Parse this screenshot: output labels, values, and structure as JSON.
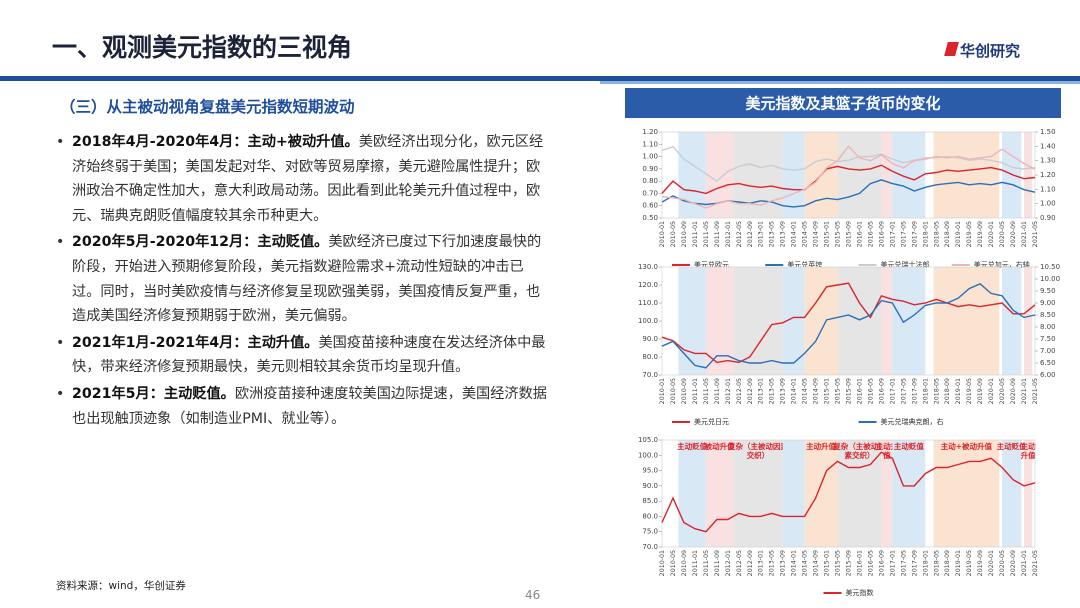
{
  "header": {
    "title": "一、观测美元指数的三视角",
    "brand": "华创研究"
  },
  "subtitle": "（三）从主被动视角复盘美元指数短期波动",
  "bullets": [
    {
      "lead": "2018年4月-2020年4月：主动+被动升值。",
      "text": "美欧经济出现分化，欧元区经济始终弱于美国；美国发起对华、对欧等贸易摩擦，美元避险属性提升；欧洲政治不确定性加大，意大利政局动荡。因此看到此轮美元升值过程中，欧元、瑞典克朗贬值幅度较其余币种更大。"
    },
    {
      "lead": "2020年5月-2020年12月：主动贬值。",
      "text": "美欧经济已度过下行加速度最快的阶段，开始进入预期修复阶段，美元指数避险需求+流动性短缺的冲击已过。同时，当时美欧疫情与经济修复呈现欧强美弱，美国疫情反复严重，也造成美国经济修复预期弱于欧洲，美元偏弱。"
    },
    {
      "lead": "2021年1月-2021年4月：主动升值。",
      "text": "美国疫苗接种速度在发达经济体中最快，带来经济修复预期最快，美元则相较其余货币均呈现升值。"
    },
    {
      "lead": "2021年5月：主动贬值。",
      "text": "欧洲疫苗接种速度较美国边际提速，美国经济数据也出现触顶迹象（如制造业PMI、就业等）。"
    }
  ],
  "source": "资料来源：wind，华创证券",
  "page": "46",
  "panel_title": "美元指数及其篮子货币的变化",
  "periods": [
    {
      "start": "2010-07",
      "end": "2011-05",
      "color": "#d9e8f5",
      "label": "主动贬值"
    },
    {
      "start": "2011-05",
      "end": "2012-03",
      "color": "#f8e1e0",
      "label": "被动升值"
    },
    {
      "start": "2012-03",
      "end": "2013-09",
      "color": "#e5e5e5",
      "label": "复杂（主被动因素交织）"
    },
    {
      "start": "2013-09",
      "end": "2014-05",
      "color": "#d9e8f5"
    },
    {
      "start": "2014-05",
      "end": "2015-05",
      "color": "#fbe3d1",
      "label": "主动升值"
    },
    {
      "start": "2015-05",
      "end": "2016-09",
      "color": "#e5e5e5",
      "label": "复杂（主被动因素交织）"
    },
    {
      "start": "2016-09",
      "end": "2017-01",
      "color": "#f8e1e0",
      "label": "主动升值"
    },
    {
      "start": "2017-01",
      "end": "2018-01",
      "color": "#d9e8f5",
      "label": "主动贬值"
    },
    {
      "start": "2018-04",
      "end": "2020-04",
      "color": "#fbe3d1",
      "label": "主动+被动升值"
    },
    {
      "start": "2020-05",
      "end": "2020-12",
      "color": "#d9e8f5",
      "label": "主动贬值"
    },
    {
      "start": "2021-01",
      "end": "2021-04",
      "color": "#f8e1e0",
      "label": "主动升值"
    }
  ],
  "charts": [
    {
      "type": "line",
      "x": [
        "2010-01",
        "2010-05",
        "2010-09",
        "2011-01",
        "2011-05",
        "2011-09",
        "2012-01",
        "2012-05",
        "2012-09",
        "2013-01",
        "2013-05",
        "2013-09",
        "2014-01",
        "2014-05",
        "2014-09",
        "2015-01",
        "2015-05",
        "2015-09",
        "2016-01",
        "2016-05",
        "2016-09",
        "2017-01",
        "2017-05",
        "2017-09",
        "2018-01",
        "2018-05",
        "2018-09",
        "2019-01",
        "2019-05",
        "2019-09",
        "2020-01",
        "2020-05",
        "2020-09",
        "2021-01",
        "2021-05"
      ],
      "ylim": [
        0.5,
        1.2
      ],
      "yticks": [
        {
          "value": 0.5,
          "label": "0.50"
        },
        {
          "value": 0.6,
          "label": "0.60"
        },
        {
          "value": 0.7,
          "label": "0.70"
        },
        {
          "value": 0.8,
          "label": "0.80"
        },
        {
          "value": 0.9,
          "label": "0.90"
        },
        {
          "value": 1.0,
          "label": "1.00"
        },
        {
          "value": 1.1,
          "label": "1.10"
        },
        {
          "value": 1.2,
          "label": "1.20"
        }
      ],
      "y2lim": [
        0.9,
        1.5
      ],
      "y2ticks": [
        {
          "value": 0.9,
          "label": "0.90"
        },
        {
          "value": 1.0,
          "label": "1.00"
        },
        {
          "value": 1.1,
          "label": "1.10"
        },
        {
          "value": 1.2,
          "label": "1.20"
        },
        {
          "value": 1.3,
          "label": "1.30"
        },
        {
          "value": 1.4,
          "label": "1.40"
        },
        {
          "value": 1.5,
          "label": "1.50"
        }
      ],
      "series": [
        {
          "name": "美元兑欧元",
          "color": "#d9252b",
          "values": [
            0.7,
            0.8,
            0.73,
            0.72,
            0.7,
            0.74,
            0.77,
            0.78,
            0.76,
            0.75,
            0.76,
            0.74,
            0.73,
            0.73,
            0.8,
            0.9,
            0.92,
            0.9,
            0.89,
            0.9,
            0.93,
            0.88,
            0.84,
            0.81,
            0.86,
            0.87,
            0.89,
            0.88,
            0.89,
            0.9,
            0.91,
            0.89,
            0.85,
            0.82,
            0.83
          ]
        },
        {
          "name": "美元兑英镑",
          "color": "#2c6fb7",
          "values": [
            0.63,
            0.68,
            0.64,
            0.62,
            0.61,
            0.62,
            0.64,
            0.63,
            0.62,
            0.64,
            0.63,
            0.6,
            0.59,
            0.6,
            0.64,
            0.66,
            0.65,
            0.67,
            0.7,
            0.78,
            0.81,
            0.78,
            0.76,
            0.72,
            0.75,
            0.77,
            0.78,
            0.79,
            0.77,
            0.78,
            0.77,
            0.79,
            0.77,
            0.73,
            0.71
          ]
        },
        {
          "name": "美元兑瑞士法郎",
          "color": "#c8ccd3",
          "values": [
            1.05,
            1.08,
            0.98,
            0.92,
            0.86,
            0.8,
            0.88,
            0.92,
            0.94,
            0.91,
            0.93,
            0.9,
            0.89,
            0.9,
            0.96,
            0.98,
            0.96,
            0.97,
            1.0,
            1.0,
            1.02,
            0.98,
            0.95,
            0.97,
            0.99,
            0.99,
            1.0,
            0.99,
            0.97,
            0.98,
            0.97,
            0.95,
            0.91,
            0.9,
            0.91
          ]
        },
        {
          "name": "美元兑加元，右轴",
          "color": "#f0b4b6",
          "axis": "y2",
          "values": [
            1.05,
            1.04,
            1.03,
            1.0,
            0.97,
            1.0,
            1.02,
            1.0,
            1.0,
            0.99,
            1.02,
            1.04,
            1.07,
            1.1,
            1.15,
            1.25,
            1.3,
            1.4,
            1.32,
            1.3,
            1.34,
            1.28,
            1.25,
            1.3,
            1.31,
            1.33,
            1.32,
            1.33,
            1.31,
            1.32,
            1.33,
            1.38,
            1.33,
            1.28,
            1.24
          ]
        }
      ]
    },
    {
      "type": "line",
      "x": [
        "2010-01",
        "2010-05",
        "2010-09",
        "2011-01",
        "2011-05",
        "2011-09",
        "2012-01",
        "2012-05",
        "2012-09",
        "2013-01",
        "2013-05",
        "2013-09",
        "2014-01",
        "2014-05",
        "2014-09",
        "2015-01",
        "2015-05",
        "2015-09",
        "2016-01",
        "2016-05",
        "2016-09",
        "2017-01",
        "2017-05",
        "2017-09",
        "2018-01",
        "2018-05",
        "2018-09",
        "2019-01",
        "2019-05",
        "2019-09",
        "2020-01",
        "2020-05",
        "2020-09",
        "2021-01",
        "2021-05"
      ],
      "ylim": [
        70,
        130
      ],
      "yticks": [
        {
          "value": 70,
          "label": "70.0"
        },
        {
          "value": 80,
          "label": "80.0"
        },
        {
          "value": 90,
          "label": "90.0"
        },
        {
          "value": 100,
          "label": "100.0"
        },
        {
          "value": 110,
          "label": "110.0"
        },
        {
          "value": 120,
          "label": "120.0"
        },
        {
          "value": 130,
          "label": "130.0"
        }
      ],
      "y2lim": [
        6,
        10.5
      ],
      "y2ticks": [
        {
          "value": 6,
          "label": "6.00"
        },
        {
          "value": 6.5,
          "label": "6.50"
        },
        {
          "value": 7,
          "label": "7.00"
        },
        {
          "value": 7.5,
          "label": "7.50"
        },
        {
          "value": 8,
          "label": "8.00"
        },
        {
          "value": 8.5,
          "label": "8.50"
        },
        {
          "value": 9,
          "label": "9.00"
        },
        {
          "value": 9.5,
          "label": "9.50"
        },
        {
          "value": 10,
          "label": "10.00"
        },
        {
          "value": 10.5,
          "label": "10.50"
        }
      ],
      "series": [
        {
          "name": "美元兑日元",
          "color": "#d9252b",
          "values": [
            91,
            89,
            84,
            82,
            82,
            77,
            78,
            77,
            80,
            89,
            98,
            99,
            102,
            102,
            110,
            119,
            120,
            121,
            110,
            102,
            114,
            112,
            111,
            109,
            110,
            112,
            110,
            108,
            109,
            108,
            109,
            110,
            104,
            104,
            109
          ]
        },
        {
          "name": "美元兑瑞典克朗，右",
          "color": "#2c6fb7",
          "axis": "y2",
          "values": [
            7.2,
            7.4,
            6.9,
            6.4,
            6.3,
            6.8,
            6.8,
            6.6,
            6.5,
            6.5,
            6.6,
            6.5,
            6.5,
            6.9,
            7.4,
            8.3,
            8.4,
            8.5,
            8.3,
            8.5,
            9.1,
            9.0,
            8.2,
            8.5,
            8.9,
            9.0,
            9.0,
            9.2,
            9.6,
            9.8,
            9.4,
            9.3,
            8.7,
            8.4,
            8.5
          ]
        }
      ]
    },
    {
      "type": "line",
      "x": [
        "2010-01",
        "2010-05",
        "2010-09",
        "2011-01",
        "2011-05",
        "2011-09",
        "2012-01",
        "2012-05",
        "2012-09",
        "2013-01",
        "2013-05",
        "2013-09",
        "2014-01",
        "2014-05",
        "2014-09",
        "2015-01",
        "2015-05",
        "2015-09",
        "2016-01",
        "2016-05",
        "2016-09",
        "2017-01",
        "2017-05",
        "2017-09",
        "2018-01",
        "2018-05",
        "2018-09",
        "2019-01",
        "2019-05",
        "2019-09",
        "2020-01",
        "2020-05",
        "2020-09",
        "2021-01",
        "2021-05"
      ],
      "ylim": [
        70,
        105
      ],
      "yticks": [
        {
          "value": 70,
          "label": "70.0"
        },
        {
          "value": 75,
          "label": "75.0"
        },
        {
          "value": 80,
          "label": "80.0"
        },
        {
          "value": 85,
          "label": "85.0"
        },
        {
          "value": 90,
          "label": "90.0"
        },
        {
          "value": 95,
          "label": "95.0"
        },
        {
          "value": 100,
          "label": "100.0"
        },
        {
          "value": 105,
          "label": "105.0"
        }
      ],
      "period_labels": true,
      "series": [
        {
          "name": "美元指数",
          "color": "#d9252b",
          "values": [
            78,
            86,
            78,
            76,
            75,
            79,
            79,
            81,
            80,
            80,
            81,
            80,
            80,
            80,
            86,
            95,
            98,
            96,
            96,
            97,
            101,
            99,
            90,
            90,
            94,
            96,
            96,
            97,
            98,
            98,
            99,
            96,
            92,
            90,
            91
          ]
        }
      ]
    }
  ]
}
